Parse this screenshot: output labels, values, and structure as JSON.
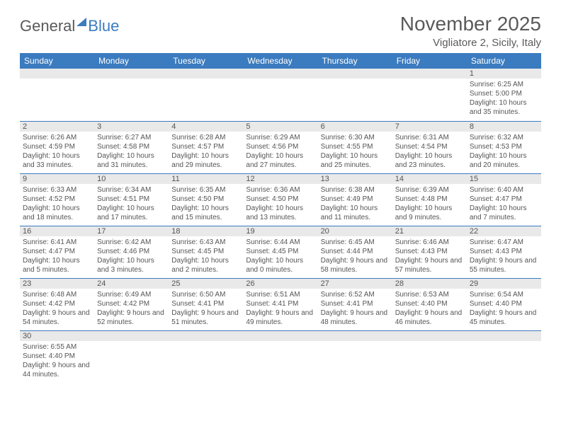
{
  "logo": {
    "part1": "General",
    "part2": "Blue"
  },
  "title": "November 2025",
  "location": "Vigliatore 2, Sicily, Italy",
  "colors": {
    "header_bg": "#3b7bbf",
    "header_text": "#ffffff",
    "daynum_bg": "#e9e9e9",
    "text": "#555555",
    "border": "#3b7bbf"
  },
  "weekdays": [
    "Sunday",
    "Monday",
    "Tuesday",
    "Wednesday",
    "Thursday",
    "Friday",
    "Saturday"
  ],
  "grid": [
    [
      {
        "n": "",
        "t": ""
      },
      {
        "n": "",
        "t": ""
      },
      {
        "n": "",
        "t": ""
      },
      {
        "n": "",
        "t": ""
      },
      {
        "n": "",
        "t": ""
      },
      {
        "n": "",
        "t": ""
      },
      {
        "n": "1",
        "t": "Sunrise: 6:25 AM\nSunset: 5:00 PM\nDaylight: 10 hours and 35 minutes."
      }
    ],
    [
      {
        "n": "2",
        "t": "Sunrise: 6:26 AM\nSunset: 4:59 PM\nDaylight: 10 hours and 33 minutes."
      },
      {
        "n": "3",
        "t": "Sunrise: 6:27 AM\nSunset: 4:58 PM\nDaylight: 10 hours and 31 minutes."
      },
      {
        "n": "4",
        "t": "Sunrise: 6:28 AM\nSunset: 4:57 PM\nDaylight: 10 hours and 29 minutes."
      },
      {
        "n": "5",
        "t": "Sunrise: 6:29 AM\nSunset: 4:56 PM\nDaylight: 10 hours and 27 minutes."
      },
      {
        "n": "6",
        "t": "Sunrise: 6:30 AM\nSunset: 4:55 PM\nDaylight: 10 hours and 25 minutes."
      },
      {
        "n": "7",
        "t": "Sunrise: 6:31 AM\nSunset: 4:54 PM\nDaylight: 10 hours and 23 minutes."
      },
      {
        "n": "8",
        "t": "Sunrise: 6:32 AM\nSunset: 4:53 PM\nDaylight: 10 hours and 20 minutes."
      }
    ],
    [
      {
        "n": "9",
        "t": "Sunrise: 6:33 AM\nSunset: 4:52 PM\nDaylight: 10 hours and 18 minutes."
      },
      {
        "n": "10",
        "t": "Sunrise: 6:34 AM\nSunset: 4:51 PM\nDaylight: 10 hours and 17 minutes."
      },
      {
        "n": "11",
        "t": "Sunrise: 6:35 AM\nSunset: 4:50 PM\nDaylight: 10 hours and 15 minutes."
      },
      {
        "n": "12",
        "t": "Sunrise: 6:36 AM\nSunset: 4:50 PM\nDaylight: 10 hours and 13 minutes."
      },
      {
        "n": "13",
        "t": "Sunrise: 6:38 AM\nSunset: 4:49 PM\nDaylight: 10 hours and 11 minutes."
      },
      {
        "n": "14",
        "t": "Sunrise: 6:39 AM\nSunset: 4:48 PM\nDaylight: 10 hours and 9 minutes."
      },
      {
        "n": "15",
        "t": "Sunrise: 6:40 AM\nSunset: 4:47 PM\nDaylight: 10 hours and 7 minutes."
      }
    ],
    [
      {
        "n": "16",
        "t": "Sunrise: 6:41 AM\nSunset: 4:47 PM\nDaylight: 10 hours and 5 minutes."
      },
      {
        "n": "17",
        "t": "Sunrise: 6:42 AM\nSunset: 4:46 PM\nDaylight: 10 hours and 3 minutes."
      },
      {
        "n": "18",
        "t": "Sunrise: 6:43 AM\nSunset: 4:45 PM\nDaylight: 10 hours and 2 minutes."
      },
      {
        "n": "19",
        "t": "Sunrise: 6:44 AM\nSunset: 4:45 PM\nDaylight: 10 hours and 0 minutes."
      },
      {
        "n": "20",
        "t": "Sunrise: 6:45 AM\nSunset: 4:44 PM\nDaylight: 9 hours and 58 minutes."
      },
      {
        "n": "21",
        "t": "Sunrise: 6:46 AM\nSunset: 4:43 PM\nDaylight: 9 hours and 57 minutes."
      },
      {
        "n": "22",
        "t": "Sunrise: 6:47 AM\nSunset: 4:43 PM\nDaylight: 9 hours and 55 minutes."
      }
    ],
    [
      {
        "n": "23",
        "t": "Sunrise: 6:48 AM\nSunset: 4:42 PM\nDaylight: 9 hours and 54 minutes."
      },
      {
        "n": "24",
        "t": "Sunrise: 6:49 AM\nSunset: 4:42 PM\nDaylight: 9 hours and 52 minutes."
      },
      {
        "n": "25",
        "t": "Sunrise: 6:50 AM\nSunset: 4:41 PM\nDaylight: 9 hours and 51 minutes."
      },
      {
        "n": "26",
        "t": "Sunrise: 6:51 AM\nSunset: 4:41 PM\nDaylight: 9 hours and 49 minutes."
      },
      {
        "n": "27",
        "t": "Sunrise: 6:52 AM\nSunset: 4:41 PM\nDaylight: 9 hours and 48 minutes."
      },
      {
        "n": "28",
        "t": "Sunrise: 6:53 AM\nSunset: 4:40 PM\nDaylight: 9 hours and 46 minutes."
      },
      {
        "n": "29",
        "t": "Sunrise: 6:54 AM\nSunset: 4:40 PM\nDaylight: 9 hours and 45 minutes."
      }
    ],
    [
      {
        "n": "30",
        "t": "Sunrise: 6:55 AM\nSunset: 4:40 PM\nDaylight: 9 hours and 44 minutes."
      },
      {
        "n": "",
        "t": ""
      },
      {
        "n": "",
        "t": ""
      },
      {
        "n": "",
        "t": ""
      },
      {
        "n": "",
        "t": ""
      },
      {
        "n": "",
        "t": ""
      },
      {
        "n": "",
        "t": ""
      }
    ]
  ]
}
